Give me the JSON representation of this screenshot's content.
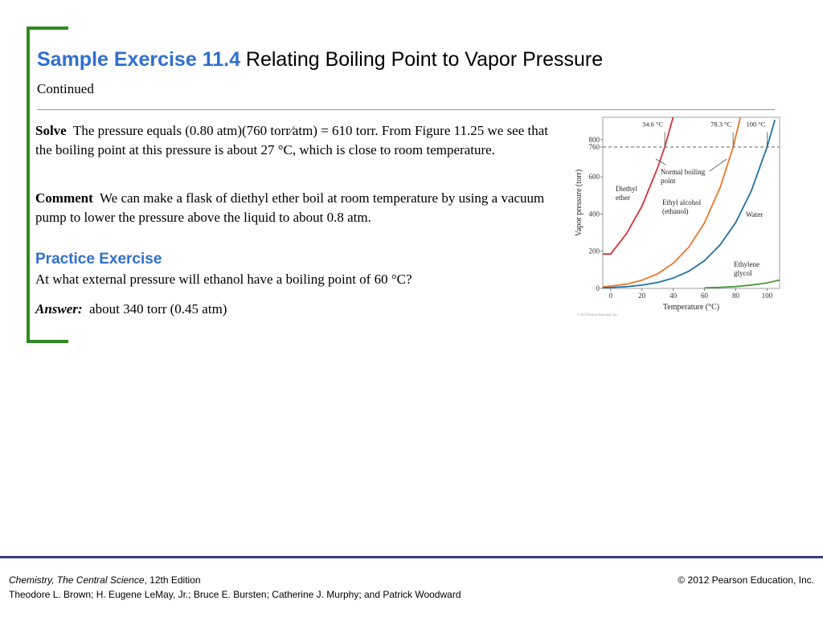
{
  "title": {
    "number": "Sample Exercise 11.4",
    "name": "Relating Boiling Point to Vapor Pressure"
  },
  "subtitle": "Continued",
  "solve": {
    "label": "Solve",
    "text": "The pressure equals (0.80 atm)(760 torr⁄atm) = 610 torr. From Figure 11.25 we see that the boiling point at this pressure is about 27 °C, which is close to room temperature."
  },
  "comment": {
    "label": "Comment",
    "text": "We can make a flask of diethyl ether boil at room temperature by using a vacuum pump to lower the pressure above the liquid to about 0.8 atm."
  },
  "practice": {
    "heading": "Practice Exercise",
    "question": "At what external pressure will ethanol have a boiling point of 60 °C?",
    "answer_label": "Answer:",
    "answer_text": "about 340 torr (0.45 atm)"
  },
  "colors": {
    "title_blue": "#2f6fd0",
    "bracket_green": "#2e8b1e",
    "footer_rule": "#3a3a8c"
  },
  "chart_data": {
    "type": "line",
    "xlabel": "Temperature (°C)",
    "ylabel": "Vapor pressure (torr)",
    "xlim": [
      -5,
      108
    ],
    "ylim": [
      0,
      920
    ],
    "xticks": [
      0,
      20,
      40,
      60,
      80,
      100
    ],
    "yticks": [
      0,
      200,
      400,
      600,
      760,
      800
    ],
    "reference_line": {
      "y": 760,
      "style": "dashed"
    },
    "boiling_point_labels": [
      {
        "text": "34.6 °C",
        "x": 34.6
      },
      {
        "text": "78.3 °C",
        "x": 78.3
      },
      {
        "text": "100 °C",
        "x": 100
      }
    ],
    "annotation": "Normal boiling point",
    "copyright": "© 2012 Pearson Education, Inc.",
    "series": [
      {
        "name": "Diethyl ether",
        "color": "#d6303a",
        "x": [
          -5,
          0,
          10,
          20,
          30,
          34.6,
          40,
          44
        ],
        "y": [
          185,
          185,
          292,
          442,
          647,
          760,
          921,
          1060
        ]
      },
      {
        "name": "Ethyl alcohol (ethanol)",
        "color": "#e8782a",
        "x": [
          -5,
          0,
          10,
          20,
          30,
          40,
          50,
          60,
          70,
          78.3,
          85
        ],
        "y": [
          8,
          12,
          23,
          44,
          78,
          135,
          222,
          352,
          542,
          760,
          990
        ]
      },
      {
        "name": "Water",
        "color": "#1f6fa8",
        "x": [
          -5,
          0,
          10,
          20,
          30,
          40,
          50,
          60,
          70,
          80,
          90,
          100,
          105
        ],
        "y": [
          3,
          4.6,
          9.2,
          17.5,
          31.8,
          55.3,
          92.5,
          149,
          234,
          355,
          526,
          760,
          906
        ]
      },
      {
        "name": "Ethylene glycol",
        "color": "#4a9a3a",
        "x": [
          60,
          70,
          80,
          90,
          100,
          108
        ],
        "y": [
          3,
          6,
          10,
          18,
          30,
          45
        ]
      }
    ]
  },
  "footer": {
    "book": "Chemistry, The Central Science",
    "edition": ", 12th Edition",
    "authors": "Theodore L. Brown; H. Eugene LeMay, Jr.; Bruce E. Bursten; Catherine J. Murphy; and Patrick Woodward",
    "copyright": "© 2012 Pearson Education, Inc."
  }
}
